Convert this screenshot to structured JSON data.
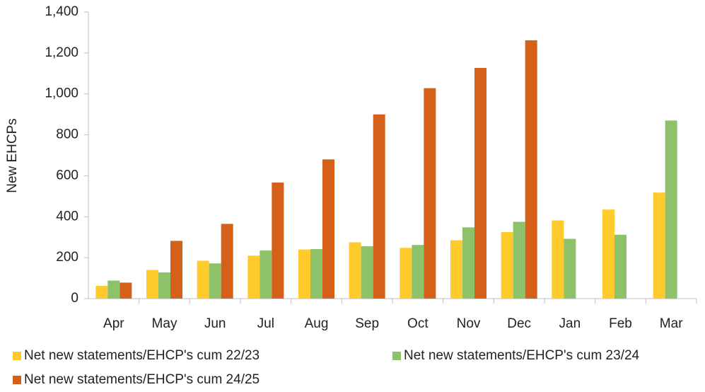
{
  "chart_data": {
    "type": "bar",
    "y_label": "New EHCPs",
    "categories": [
      "Apr",
      "May",
      "Jun",
      "Jul",
      "Aug",
      "Sep",
      "Oct",
      "Nov",
      "Dec",
      "Jan",
      "Feb",
      "Mar"
    ],
    "series": [
      {
        "name": "Net new statements/EHCP's cum 22/23",
        "color": "#ffca2c",
        "values": [
          62,
          140,
          185,
          210,
          240,
          275,
          248,
          285,
          325,
          382,
          435,
          518
        ]
      },
      {
        "name": "Net new statements/EHCP's cum 23/24",
        "color": "#8dc16a",
        "values": [
          88,
          128,
          172,
          235,
          242,
          256,
          262,
          348,
          375,
          292,
          312,
          870
        ]
      },
      {
        "name": "Net new statements/EHCP's cum 24/25",
        "color": "#d4601a",
        "values": [
          78,
          282,
          365,
          567,
          680,
          900,
          1028,
          1127,
          1262,
          null,
          null,
          null
        ]
      }
    ],
    "ylim": [
      0,
      1400
    ],
    "yticks": [
      0,
      200,
      400,
      600,
      800,
      {
        "value": 1000,
        "label": "1,000"
      },
      {
        "value": 1200,
        "label": "1,200"
      },
      {
        "value": 1400,
        "label": "1,400"
      }
    ],
    "grid": false,
    "legend": "bottom"
  }
}
